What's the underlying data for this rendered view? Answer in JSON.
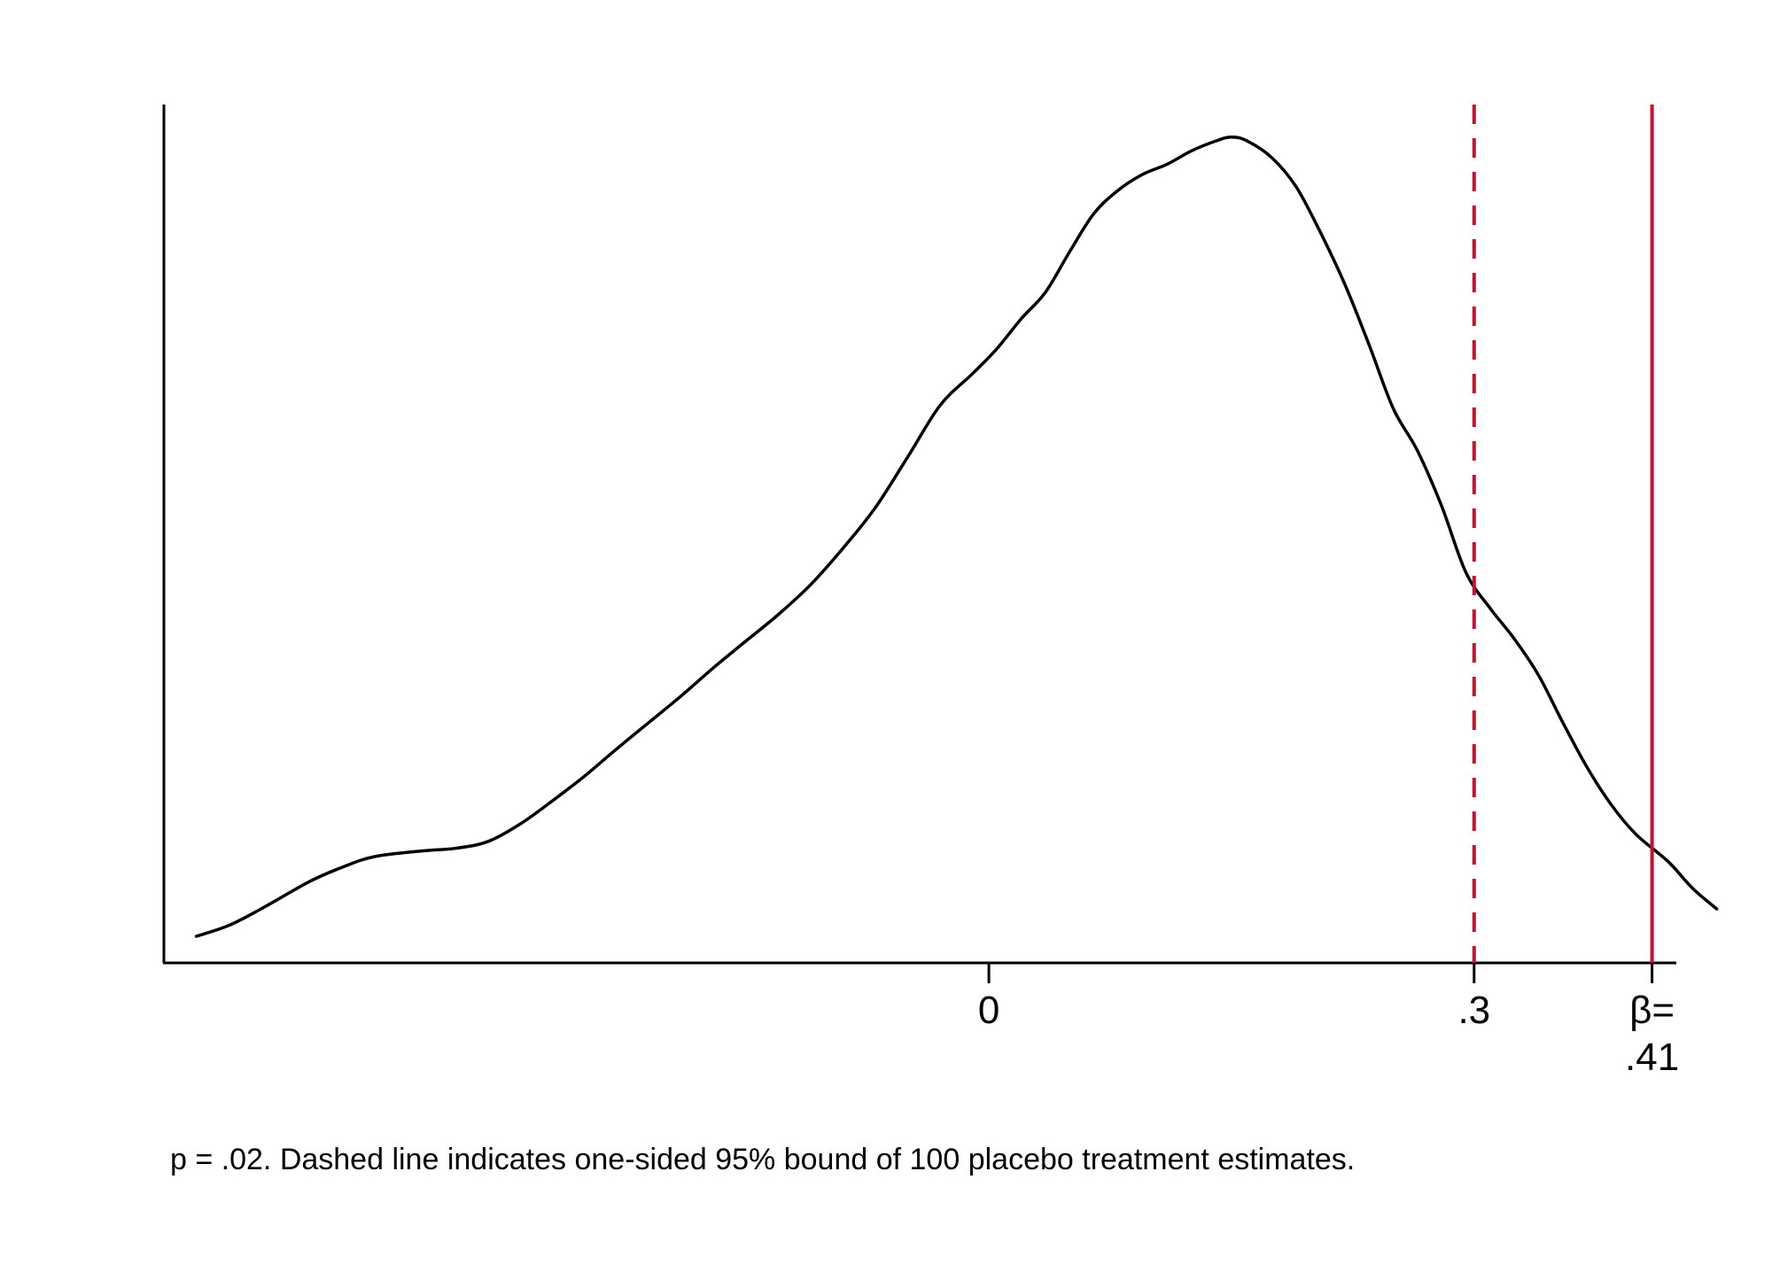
{
  "chart_data": {
    "type": "line",
    "title": "",
    "xlabel": "",
    "ylabel": "",
    "xlim": [
      -0.51,
      0.425
    ],
    "ylim": [
      0,
      1
    ],
    "grid": false,
    "legend": "none",
    "series": [
      {
        "values": [
          {
            "x": -0.49,
            "y": 0.032
          },
          {
            "x": -0.47,
            "y": 0.045
          },
          {
            "x": -0.45,
            "y": 0.065
          },
          {
            "x": -0.42,
            "y": 0.098
          },
          {
            "x": -0.4,
            "y": 0.115
          },
          {
            "x": -0.38,
            "y": 0.128
          },
          {
            "x": -0.35,
            "y": 0.135
          },
          {
            "x": -0.33,
            "y": 0.138
          },
          {
            "x": -0.31,
            "y": 0.146
          },
          {
            "x": -0.29,
            "y": 0.167
          },
          {
            "x": -0.27,
            "y": 0.195
          },
          {
            "x": -0.25,
            "y": 0.225
          },
          {
            "x": -0.23,
            "y": 0.258
          },
          {
            "x": -0.21,
            "y": 0.29
          },
          {
            "x": -0.19,
            "y": 0.322
          },
          {
            "x": -0.17,
            "y": 0.356
          },
          {
            "x": -0.15,
            "y": 0.388
          },
          {
            "x": -0.13,
            "y": 0.42
          },
          {
            "x": -0.11,
            "y": 0.456
          },
          {
            "x": -0.09,
            "y": 0.5
          },
          {
            "x": -0.07,
            "y": 0.549
          },
          {
            "x": -0.05,
            "y": 0.61
          },
          {
            "x": -0.03,
            "y": 0.672
          },
          {
            "x": -0.01,
            "y": 0.71
          },
          {
            "x": 0.005,
            "y": 0.74
          },
          {
            "x": 0.02,
            "y": 0.776
          },
          {
            "x": 0.035,
            "y": 0.808
          },
          {
            "x": 0.05,
            "y": 0.857
          },
          {
            "x": 0.065,
            "y": 0.903
          },
          {
            "x": 0.08,
            "y": 0.931
          },
          {
            "x": 0.095,
            "y": 0.95
          },
          {
            "x": 0.11,
            "y": 0.962
          },
          {
            "x": 0.125,
            "y": 0.978
          },
          {
            "x": 0.14,
            "y": 0.99
          },
          {
            "x": 0.15,
            "y": 0.995
          },
          {
            "x": 0.16,
            "y": 0.99
          },
          {
            "x": 0.175,
            "y": 0.97
          },
          {
            "x": 0.19,
            "y": 0.935
          },
          {
            "x": 0.205,
            "y": 0.88
          },
          {
            "x": 0.22,
            "y": 0.818
          },
          {
            "x": 0.235,
            "y": 0.745
          },
          {
            "x": 0.25,
            "y": 0.668
          },
          {
            "x": 0.265,
            "y": 0.617
          },
          {
            "x": 0.28,
            "y": 0.55
          },
          {
            "x": 0.295,
            "y": 0.47
          },
          {
            "x": 0.31,
            "y": 0.427
          },
          {
            "x": 0.325,
            "y": 0.39
          },
          {
            "x": 0.34,
            "y": 0.346
          },
          {
            "x": 0.355,
            "y": 0.289
          },
          {
            "x": 0.37,
            "y": 0.235
          },
          {
            "x": 0.385,
            "y": 0.19
          },
          {
            "x": 0.4,
            "y": 0.155
          },
          {
            "x": 0.42,
            "y": 0.122
          },
          {
            "x": 0.435,
            "y": 0.09
          },
          {
            "x": 0.45,
            "y": 0.065
          }
        ]
      }
    ],
    "x_ticks": [
      {
        "value": 0,
        "label": "0"
      },
      {
        "value": 0.3,
        "label": ".3"
      },
      {
        "value": 0.41,
        "label": "β=",
        "label2": ".41"
      }
    ],
    "reference_lines": [
      {
        "x": 0.3,
        "style": "dashed",
        "color": "#c8102e"
      },
      {
        "x": 0.41,
        "style": "solid",
        "color": "#c8102e"
      }
    ],
    "line_color": "#000000",
    "note": "p = .02. Dashed line indicates one-sided 95% bound of 100 placebo treatment estimates."
  }
}
